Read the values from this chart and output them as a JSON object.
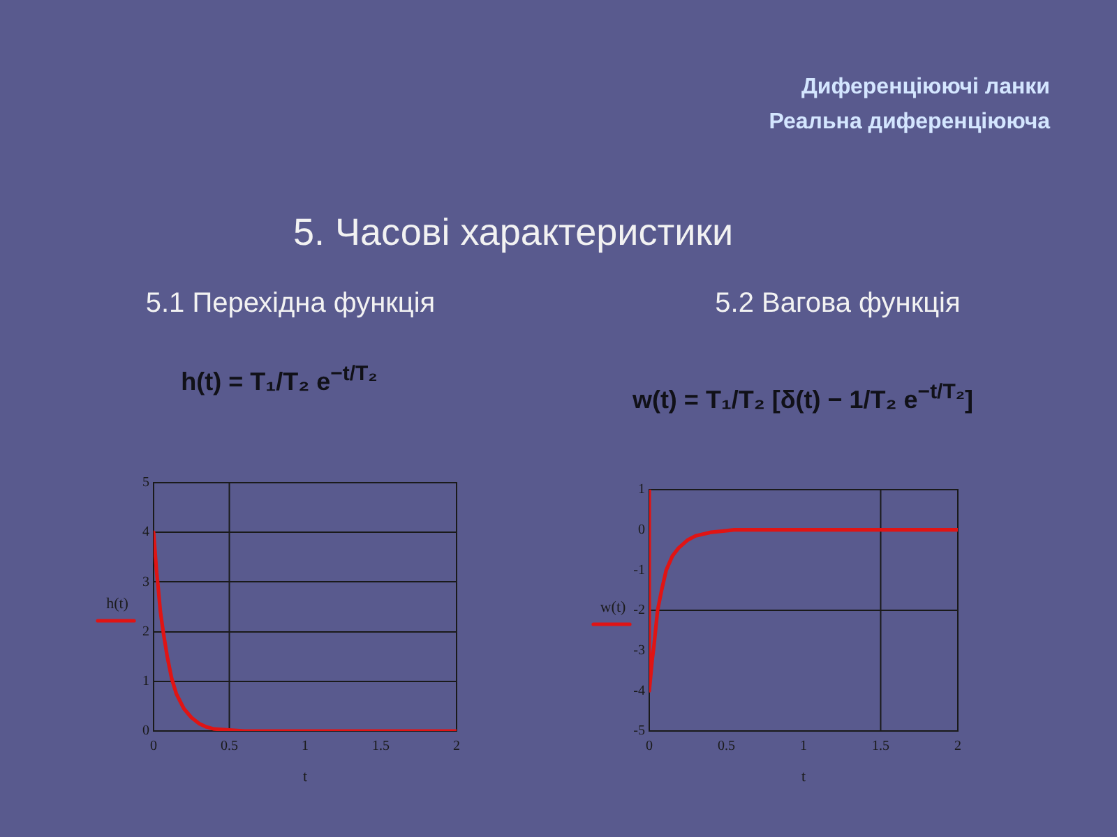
{
  "chart_data": [
    {
      "type": "other",
      "title": "5. Часові характеристики",
      "annotations": [
        "Диференціюючі ланки",
        "Реальна диференціююча"
      ]
    },
    {
      "type": "line",
      "title": "5.1 Перехідна функція",
      "subtitle": "h(t) = T₁/T₂ e$^{−t/T₂}$",
      "xlabel": "t",
      "ylabel": "h(t)",
      "xlim": [
        0,
        2
      ],
      "xticks": [
        0,
        0.5,
        1,
        1.5,
        2
      ],
      "ylim": [
        0,
        5
      ],
      "yticks": [
        0,
        1,
        2,
        3,
        4,
        5
      ],
      "grid": "y",
      "marker": "none",
      "ref_lines": [
        {
          "axis": "x",
          "value": 0.5,
          "color": "#1a1a1a"
        }
      ],
      "series": [
        {
          "color": "#e01414",
          "x": [
            0,
            0.01,
            0.02,
            0.03,
            0.045,
            0.066,
            0.09,
            0.12,
            0.15,
            0.2,
            0.25,
            0.3,
            0.35,
            0.4,
            0.5,
            0.6,
            1,
            1.5,
            2
          ],
          "values": [
            4.0,
            3.6,
            3.2,
            2.9,
            2.4,
            1.95,
            1.5,
            1.05,
            0.75,
            0.45,
            0.27,
            0.15,
            0.08,
            0.04,
            0.02,
            0,
            0,
            0,
            0
          ]
        }
      ]
    },
    {
      "type": "line",
      "title": "5.2 Вагова функція",
      "subtitle": "w(t) = T₁/T₂ [δ(t) − 1/T₂ e$^{−t/T₂}$]",
      "xlabel": "t",
      "ylabel": "w(t)",
      "xlim": [
        0,
        2
      ],
      "xticks": [
        0,
        0.5,
        1,
        1.5,
        2
      ],
      "ylim": [
        -5,
        1
      ],
      "yticks": [
        -5,
        -4,
        -3,
        -2,
        -1,
        0,
        1
      ],
      "marker": "none",
      "ref_lines": [
        {
          "axis": "x",
          "value": 1.5,
          "color": "#1a1a1a"
        },
        {
          "axis": "y",
          "value": -2,
          "color": "#1a1a1a"
        }
      ],
      "series": [
        {
          "color": "#e01414",
          "x": [
            0,
            0,
            0.01,
            0.02,
            0.03,
            0.054,
            0.08,
            0.11,
            0.15,
            0.19,
            0.25,
            0.3,
            0.4,
            0.5,
            0.55,
            1,
            1.5,
            2
          ],
          "values": [
            1,
            -4,
            -3.6,
            -3.2,
            -2.9,
            -2.0,
            -1.5,
            -1.0,
            -0.65,
            -0.45,
            -0.25,
            -0.15,
            -0.06,
            -0.02,
            0,
            0,
            0,
            0
          ]
        }
      ]
    }
  ]
}
